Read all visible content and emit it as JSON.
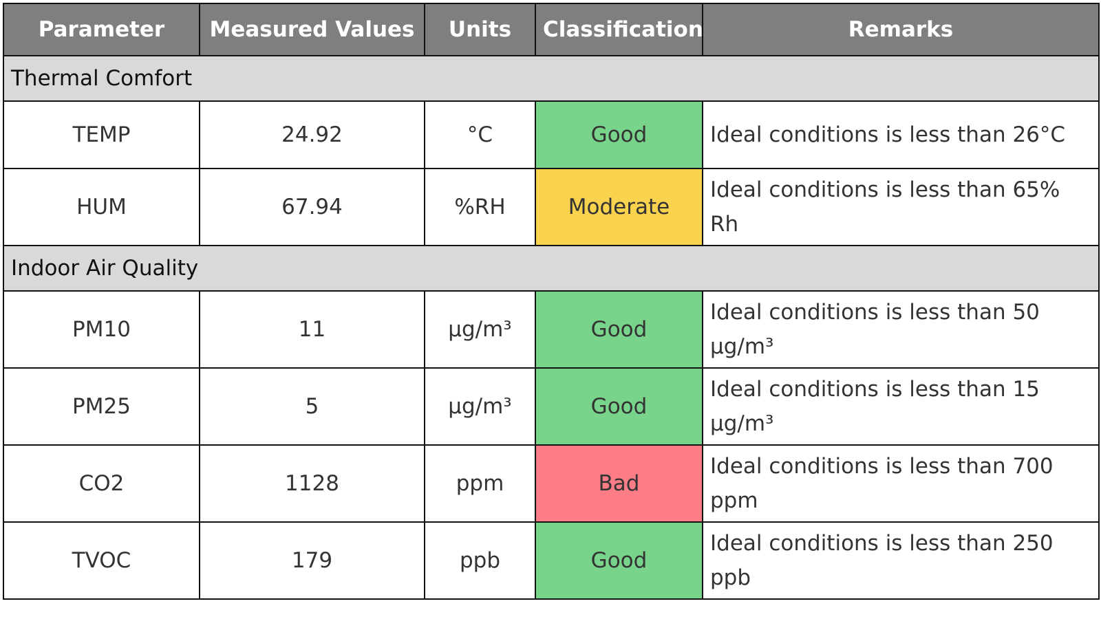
{
  "table": {
    "columns": [
      "Parameter",
      "Measured Values",
      "Units",
      "Classification",
      "Remarks"
    ],
    "sections": [
      {
        "title": "Thermal Comfort",
        "rows": [
          {
            "parameter": "TEMP",
            "value": 24.92,
            "unit": "°C",
            "classification": "Good",
            "color": "#78d48a",
            "remarks": "Ideal conditions is less than 26°C"
          },
          {
            "parameter": "HUM",
            "value": 67.94,
            "unit": "%RH",
            "classification": "Moderate",
            "color": "#f9d24e",
            "remarks": "Ideal conditions is less than 65% Rh"
          }
        ]
      },
      {
        "title": "Indoor Air Quality",
        "rows": [
          {
            "parameter": "PM10",
            "value": 11,
            "unit": "µg/m³",
            "classification": "Good",
            "color": "#78d48a",
            "remarks": "Ideal conditions is less than 50 µg/m³"
          },
          {
            "parameter": "PM25",
            "value": 5,
            "unit": "µg/m³",
            "classification": "Good",
            "color": "#78d48a",
            "remarks": "Ideal conditions is less than 15 µg/m³"
          },
          {
            "parameter": "CO2",
            "value": 1128,
            "unit": "ppm",
            "classification": "Bad",
            "color": "#fd7d87",
            "remarks": "Ideal conditions is less than 700 ppm"
          },
          {
            "parameter": "TVOC",
            "value": 179,
            "unit": "ppb",
            "classification": "Good",
            "color": "#78d48a",
            "remarks": "Ideal conditions is less than 250 ppb"
          }
        ]
      }
    ]
  }
}
